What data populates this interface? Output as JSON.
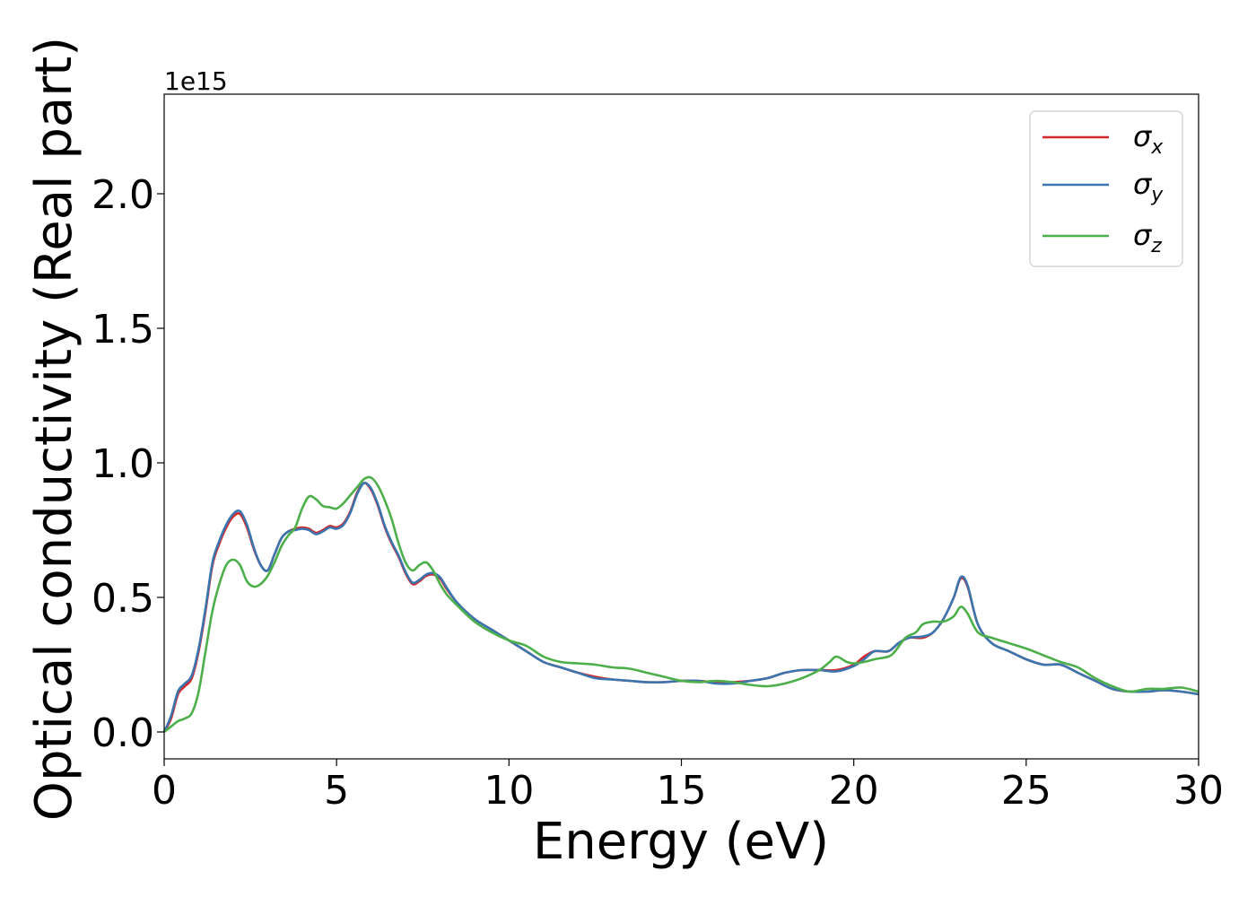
{
  "chart_data": {
    "type": "line",
    "title": "",
    "xlabel": "Energy (eV)",
    "ylabel": "Optical conductivity (Real part)",
    "offset_label": "1e15",
    "y_scale_factor": 1000000000000000.0,
    "xlim": [
      0,
      30
    ],
    "ylim": [
      -0.1,
      2.37
    ],
    "x_ticks": [
      0,
      5,
      10,
      15,
      20,
      25,
      30
    ],
    "x_tick_labels": [
      "0",
      "5",
      "10",
      "15",
      "20",
      "25",
      "30"
    ],
    "y_ticks": [
      0.0,
      0.5,
      1.0,
      1.5,
      2.0
    ],
    "y_tick_labels": [
      "0.0",
      "0.5",
      "1.0",
      "1.5",
      "2.0"
    ],
    "grid": false,
    "legend_position": "top-right",
    "series": [
      {
        "name": "σx",
        "symbol": "σ",
        "subscript": "x",
        "color": "#d62728",
        "x": [
          0,
          0.2,
          0.4,
          0.6,
          0.8,
          1.0,
          1.2,
          1.4,
          1.6,
          1.8,
          2.0,
          2.2,
          2.4,
          2.6,
          2.8,
          3.0,
          3.2,
          3.4,
          3.6,
          3.8,
          4.0,
          4.2,
          4.4,
          4.6,
          4.8,
          5.0,
          5.2,
          5.4,
          5.6,
          5.8,
          6.0,
          6.2,
          6.4,
          6.6,
          6.8,
          7.0,
          7.2,
          7.4,
          7.6,
          7.8,
          8.0,
          8.2,
          8.5,
          9.0,
          9.5,
          10.0,
          10.5,
          11.0,
          11.5,
          12.0,
          12.5,
          13.0,
          13.5,
          14.0,
          14.5,
          15.0,
          15.5,
          16.0,
          16.5,
          17.0,
          17.5,
          18.0,
          18.5,
          19.0,
          19.5,
          20.0,
          20.3,
          20.6,
          21.0,
          21.3,
          21.6,
          22.0,
          22.3,
          22.6,
          22.9,
          23.1,
          23.3,
          23.6,
          24.0,
          24.5,
          25.0,
          25.5,
          26.0,
          26.5,
          27.0,
          27.5,
          28.0,
          28.5,
          29.0,
          29.5,
          30.0
        ],
        "y": [
          0.0,
          0.05,
          0.14,
          0.17,
          0.2,
          0.3,
          0.45,
          0.62,
          0.7,
          0.76,
          0.8,
          0.81,
          0.76,
          0.68,
          0.62,
          0.6,
          0.66,
          0.72,
          0.745,
          0.755,
          0.76,
          0.755,
          0.74,
          0.75,
          0.765,
          0.76,
          0.775,
          0.82,
          0.89,
          0.925,
          0.9,
          0.84,
          0.76,
          0.7,
          0.65,
          0.59,
          0.55,
          0.56,
          0.58,
          0.585,
          0.57,
          0.53,
          0.48,
          0.42,
          0.38,
          0.34,
          0.3,
          0.26,
          0.24,
          0.22,
          0.205,
          0.195,
          0.19,
          0.185,
          0.185,
          0.19,
          0.19,
          0.185,
          0.185,
          0.19,
          0.2,
          0.22,
          0.23,
          0.23,
          0.23,
          0.25,
          0.28,
          0.3,
          0.3,
          0.33,
          0.35,
          0.35,
          0.37,
          0.42,
          0.5,
          0.57,
          0.54,
          0.4,
          0.33,
          0.3,
          0.27,
          0.25,
          0.25,
          0.22,
          0.19,
          0.16,
          0.15,
          0.15,
          0.155,
          0.15,
          0.14
        ]
      },
      {
        "name": "σy",
        "symbol": "σ",
        "subscript": "y",
        "color": "#3b75af",
        "x": [
          0,
          0.2,
          0.4,
          0.6,
          0.8,
          1.0,
          1.2,
          1.4,
          1.6,
          1.8,
          2.0,
          2.2,
          2.4,
          2.6,
          2.8,
          3.0,
          3.2,
          3.4,
          3.6,
          3.8,
          4.0,
          4.2,
          4.4,
          4.6,
          4.8,
          5.0,
          5.2,
          5.4,
          5.6,
          5.8,
          6.0,
          6.2,
          6.4,
          6.6,
          6.8,
          7.0,
          7.2,
          7.4,
          7.6,
          7.8,
          8.0,
          8.2,
          8.5,
          9.0,
          9.5,
          10.0,
          10.5,
          11.0,
          11.5,
          12.0,
          12.5,
          13.0,
          13.5,
          14.0,
          14.5,
          15.0,
          15.5,
          16.0,
          16.5,
          17.0,
          17.5,
          18.0,
          18.5,
          19.0,
          19.5,
          20.0,
          20.3,
          20.6,
          21.0,
          21.3,
          21.6,
          22.0,
          22.3,
          22.6,
          22.9,
          23.1,
          23.3,
          23.6,
          24.0,
          24.5,
          25.0,
          25.5,
          26.0,
          26.5,
          27.0,
          27.5,
          28.0,
          28.5,
          29.0,
          29.5,
          30.0
        ],
        "y": [
          0.0,
          0.06,
          0.15,
          0.18,
          0.21,
          0.31,
          0.46,
          0.63,
          0.71,
          0.77,
          0.81,
          0.82,
          0.77,
          0.685,
          0.62,
          0.6,
          0.66,
          0.72,
          0.745,
          0.75,
          0.755,
          0.75,
          0.735,
          0.745,
          0.76,
          0.755,
          0.77,
          0.815,
          0.885,
          0.925,
          0.905,
          0.845,
          0.765,
          0.705,
          0.655,
          0.595,
          0.555,
          0.565,
          0.585,
          0.59,
          0.575,
          0.535,
          0.48,
          0.42,
          0.38,
          0.34,
          0.3,
          0.26,
          0.24,
          0.22,
          0.2,
          0.195,
          0.19,
          0.185,
          0.185,
          0.19,
          0.19,
          0.18,
          0.18,
          0.19,
          0.2,
          0.22,
          0.23,
          0.23,
          0.225,
          0.245,
          0.27,
          0.3,
          0.3,
          0.33,
          0.35,
          0.355,
          0.37,
          0.42,
          0.5,
          0.575,
          0.545,
          0.4,
          0.33,
          0.3,
          0.27,
          0.25,
          0.25,
          0.22,
          0.19,
          0.16,
          0.15,
          0.15,
          0.155,
          0.15,
          0.14
        ]
      },
      {
        "name": "σz",
        "symbol": "σ",
        "subscript": "z",
        "color": "#4daf4a",
        "x": [
          0,
          0.2,
          0.4,
          0.6,
          0.8,
          1.0,
          1.2,
          1.4,
          1.6,
          1.8,
          2.0,
          2.2,
          2.4,
          2.6,
          2.8,
          3.0,
          3.2,
          3.4,
          3.6,
          3.8,
          4.0,
          4.2,
          4.4,
          4.6,
          4.8,
          5.0,
          5.2,
          5.4,
          5.6,
          5.8,
          6.0,
          6.2,
          6.4,
          6.6,
          6.8,
          7.0,
          7.2,
          7.4,
          7.6,
          7.8,
          8.0,
          8.2,
          8.5,
          9.0,
          9.5,
          10.0,
          10.5,
          11.0,
          11.5,
          12.0,
          12.5,
          13.0,
          13.5,
          14.0,
          14.5,
          15.0,
          15.5,
          16.0,
          16.5,
          17.0,
          17.5,
          18.0,
          18.5,
          19.0,
          19.3,
          19.5,
          19.8,
          20.0,
          20.3,
          20.6,
          21.0,
          21.2,
          21.5,
          21.8,
          22.0,
          22.3,
          22.6,
          22.9,
          23.1,
          23.3,
          23.6,
          24.0,
          24.5,
          25.0,
          25.5,
          26.0,
          26.5,
          27.0,
          27.5,
          28.0,
          28.5,
          29.0,
          29.5,
          30.0
        ],
        "y": [
          0.0,
          0.02,
          0.04,
          0.05,
          0.07,
          0.15,
          0.3,
          0.45,
          0.55,
          0.62,
          0.64,
          0.62,
          0.56,
          0.54,
          0.55,
          0.58,
          0.63,
          0.69,
          0.73,
          0.76,
          0.83,
          0.875,
          0.865,
          0.84,
          0.835,
          0.83,
          0.85,
          0.88,
          0.91,
          0.94,
          0.945,
          0.915,
          0.86,
          0.79,
          0.7,
          0.63,
          0.6,
          0.62,
          0.63,
          0.6,
          0.55,
          0.51,
          0.47,
          0.41,
          0.37,
          0.34,
          0.32,
          0.28,
          0.26,
          0.255,
          0.25,
          0.24,
          0.235,
          0.22,
          0.205,
          0.19,
          0.185,
          0.19,
          0.185,
          0.175,
          0.17,
          0.18,
          0.2,
          0.23,
          0.26,
          0.28,
          0.26,
          0.255,
          0.26,
          0.27,
          0.28,
          0.3,
          0.35,
          0.37,
          0.4,
          0.41,
          0.41,
          0.43,
          0.465,
          0.44,
          0.37,
          0.35,
          0.33,
          0.31,
          0.285,
          0.26,
          0.24,
          0.2,
          0.17,
          0.15,
          0.16,
          0.16,
          0.165,
          0.15
        ]
      }
    ]
  }
}
